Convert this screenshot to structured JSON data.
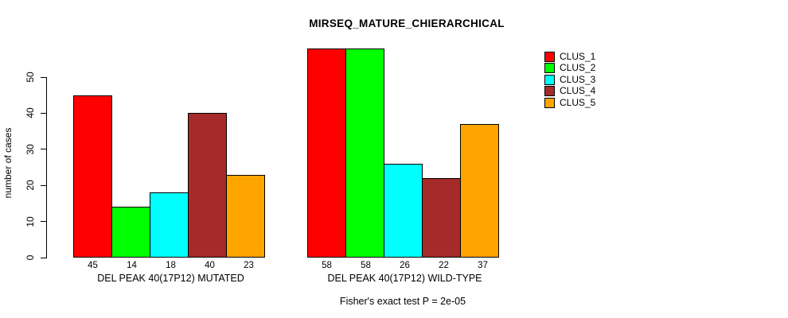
{
  "chart_data": {
    "type": "bar",
    "title": "MIRSEQ_MATURE_CHIERARCHICAL",
    "ylabel": "number of cases",
    "xlabel": "",
    "ylim": [
      0,
      58
    ],
    "yticks": [
      0,
      10,
      20,
      30,
      40,
      50
    ],
    "grid": false,
    "legend_position": "top-right",
    "categories": [
      "DEL PEAK 40(17P12) MUTATED",
      "DEL PEAK 40(17P12) WILD-TYPE"
    ],
    "series": [
      {
        "name": "CLUS_1",
        "color": "#FF0000",
        "values": [
          45,
          58
        ]
      },
      {
        "name": "CLUS_2",
        "color": "#00FF00",
        "values": [
          14,
          58
        ]
      },
      {
        "name": "CLUS_3",
        "color": "#00FFFF",
        "values": [
          18,
          26
        ]
      },
      {
        "name": "CLUS_4",
        "color": "#A52A2A",
        "values": [
          40,
          22
        ]
      },
      {
        "name": "CLUS_5",
        "color": "#FFA500",
        "values": [
          23,
          37
        ]
      }
    ],
    "bar_value_labels": [
      [
        45,
        14,
        18,
        40,
        23
      ],
      [
        58,
        58,
        26,
        22,
        37
      ]
    ],
    "annotation": "Fisher's exact test P = 2e-05"
  }
}
